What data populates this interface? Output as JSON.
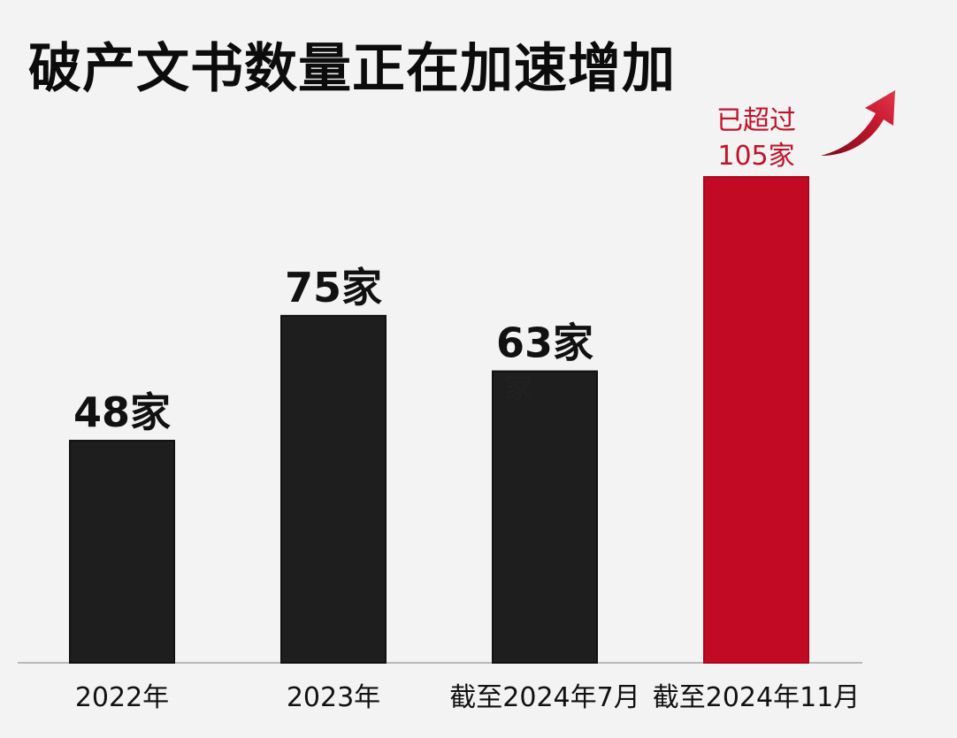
{
  "chart_data": {
    "type": "bar",
    "title": "破产文书数量正在加速增加",
    "categories": [
      "2022年",
      "2023年",
      "截至2024年7月",
      "截至2024年11月"
    ],
    "values": [
      48,
      75,
      63,
      105
    ],
    "value_labels": [
      "48家",
      "75家",
      "63家",
      "105家"
    ],
    "highlight_prefix": "已超过",
    "ghost_text": "家",
    "ylim": [
      0,
      110
    ],
    "grid": false,
    "colors": {
      "default_bar": "#1e1e1e",
      "highlight_bar": "#c20a25",
      "highlight_text": "#c2132a",
      "arrow": "#b5122b",
      "axis_line": "#b8b8b8"
    }
  }
}
